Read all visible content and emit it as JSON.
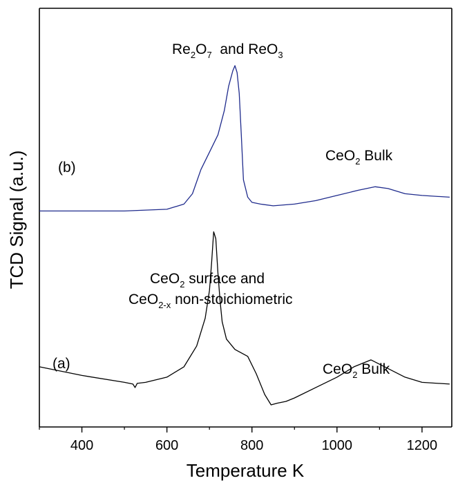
{
  "chart_data": {
    "type": "line",
    "xlabel": "Temperature K",
    "ylabel": "TCD Signal (a.u.)",
    "xlim": [
      300,
      1270
    ],
    "ylim": [
      0,
      1
    ],
    "x_ticks": [
      400,
      600,
      800,
      1000,
      1200
    ],
    "grid": false,
    "series": [
      {
        "name": "(a)",
        "color": "#000000",
        "x": [
          300,
          400,
          500,
          520,
          525,
          530,
          550,
          600,
          640,
          670,
          690,
          700,
          705,
          710,
          715,
          720,
          725,
          730,
          740,
          760,
          790,
          810,
          830,
          845,
          860,
          880,
          900,
          950,
          1000,
          1040,
          1080,
          1120,
          1160,
          1200,
          1265
        ],
        "y": [
          0.13,
          0.105,
          0.085,
          0.08,
          0.07,
          0.082,
          0.085,
          0.1,
          0.13,
          0.19,
          0.27,
          0.35,
          0.43,
          0.52,
          0.5,
          0.4,
          0.32,
          0.26,
          0.21,
          0.18,
          0.16,
          0.11,
          0.05,
          0.02,
          0.025,
          0.03,
          0.04,
          0.07,
          0.1,
          0.13,
          0.15,
          0.125,
          0.1,
          0.085,
          0.08
        ]
      },
      {
        "name": "(b)",
        "color": "#1e2a8c",
        "x": [
          300,
          400,
          500,
          600,
          640,
          660,
          680,
          700,
          720,
          735,
          745,
          755,
          760,
          765,
          770,
          775,
          780,
          790,
          800,
          820,
          850,
          900,
          950,
          1000,
          1050,
          1090,
          1120,
          1160,
          1200,
          1265
        ],
        "y": [
          0.58,
          0.58,
          0.58,
          0.585,
          0.6,
          0.63,
          0.7,
          0.75,
          0.8,
          0.87,
          0.94,
          0.985,
          1.0,
          0.98,
          0.92,
          0.8,
          0.67,
          0.62,
          0.605,
          0.6,
          0.595,
          0.6,
          0.61,
          0.625,
          0.64,
          0.65,
          0.645,
          0.63,
          0.625,
          0.62
        ]
      }
    ],
    "annotations": {
      "top_peak": {
        "part1": "Re",
        "sub1": "2",
        "part2": "O",
        "sub2": "7",
        "part3": "  and ReO",
        "sub3": "3"
      },
      "bulk_b": {
        "part1": "CeO",
        "sub1": "2",
        "part2": " Bulk"
      },
      "label_b": "(b)",
      "bottom_peak_line1": {
        "part1": "CeO",
        "sub1": "2",
        "part2": " surface and"
      },
      "bottom_peak_line2": {
        "part1": "CeO",
        "sub1": "2-x",
        "part2": " non-stoichiometric"
      },
      "label_a": "(a)",
      "bulk_a": {
        "part1": "CeO",
        "sub1": "2",
        "part2": " Bulk"
      }
    }
  }
}
